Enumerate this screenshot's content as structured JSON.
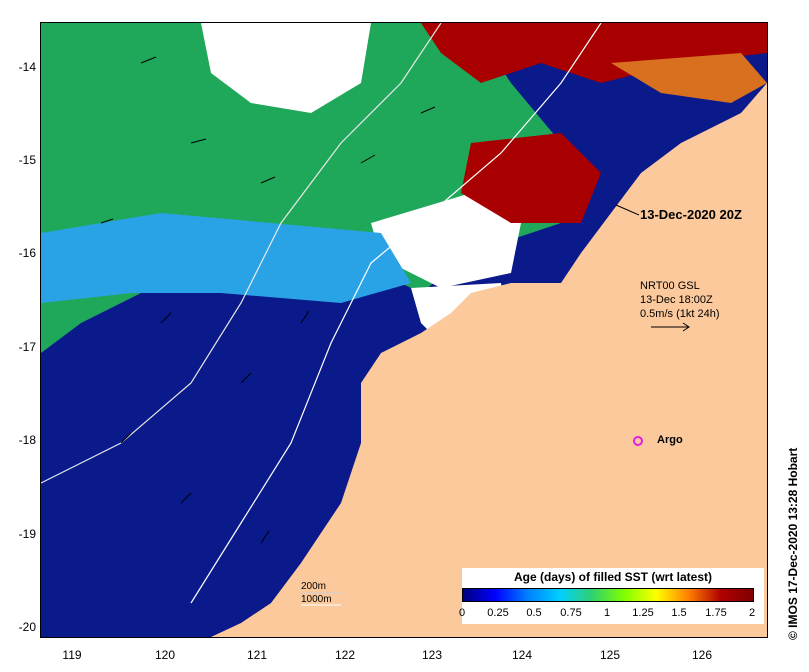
{
  "map": {
    "timestamp_label": "13-Dec-2020 20Z",
    "current_info": {
      "line1": "NRT00 GSL",
      "line2": "13-Dec 18:00Z",
      "line3": "0.5m/s (1kt 24h)"
    },
    "argo_label": "Argo",
    "depth_contours": [
      "200m",
      "1000m"
    ],
    "credit": "IMOS 17-Dec-2020 13:28 Hobart",
    "copyright_symbol": "©",
    "lat_ticks": [
      "-14",
      "-15",
      "-16",
      "-17",
      "-18",
      "-19",
      "-20"
    ],
    "lon_ticks": [
      "119",
      "120",
      "121",
      "122",
      "123",
      "124",
      "125",
      "126"
    ],
    "colors": {
      "land": "#fbc99c",
      "no_data": "#ffffff",
      "argo": "#e020e0"
    }
  },
  "legend": {
    "title": "Age (days) of filled SST (wrt latest)",
    "ticks": [
      "0",
      "0.25",
      "0.5",
      "0.75",
      "1",
      "1.25",
      "1.5",
      "1.75",
      "2"
    ],
    "range": [
      0,
      2
    ],
    "colormap": [
      "#00007f",
      "#0000ff",
      "#007fff",
      "#00cfff",
      "#2fd070",
      "#7fff00",
      "#ffff00",
      "#ff7f00",
      "#b00000",
      "#7f0000"
    ]
  }
}
